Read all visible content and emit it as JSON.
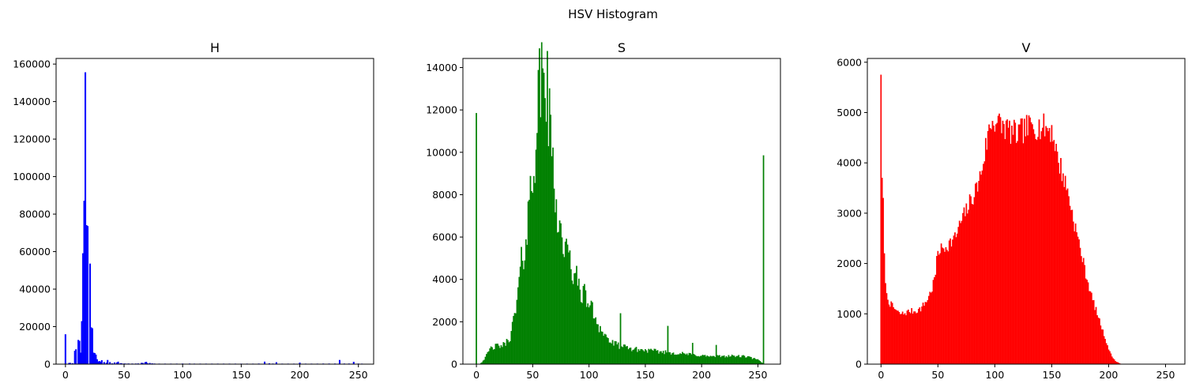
{
  "figure": {
    "suptitle": "HSV Histogram"
  },
  "chart_data": [
    {
      "type": "bar",
      "title": "H",
      "color": "#0000ff",
      "xlim": [
        -8,
        263
      ],
      "ylim": [
        0,
        163000
      ],
      "xticks": [
        0,
        50,
        100,
        150,
        200,
        250
      ],
      "yticks": [
        0,
        20000,
        40000,
        60000,
        80000,
        100000,
        120000,
        140000,
        160000
      ],
      "grid": false,
      "bins": [
        [
          0,
          15800
        ],
        [
          3,
          500
        ],
        [
          4,
          600
        ],
        [
          6,
          400
        ],
        [
          8,
          7000
        ],
        [
          9,
          7800
        ],
        [
          11,
          12800
        ],
        [
          12,
          12300
        ],
        [
          13,
          6000
        ],
        [
          14,
          22800
        ],
        [
          15,
          59000
        ],
        [
          16,
          87000
        ],
        [
          17,
          155500
        ],
        [
          18,
          74000
        ],
        [
          19,
          73500
        ],
        [
          21,
          53500
        ],
        [
          22,
          19500
        ],
        [
          23,
          19000
        ],
        [
          24,
          6000
        ],
        [
          25,
          5800
        ],
        [
          26,
          5000
        ],
        [
          27,
          2500
        ],
        [
          28,
          1300
        ],
        [
          29,
          1500
        ],
        [
          30,
          1200
        ],
        [
          31,
          2000
        ],
        [
          33,
          1000
        ],
        [
          35,
          700
        ],
        [
          36,
          2100
        ],
        [
          38,
          1000
        ],
        [
          40,
          300
        ],
        [
          42,
          800
        ],
        [
          44,
          800
        ],
        [
          45,
          1200
        ],
        [
          47,
          400
        ],
        [
          48,
          300
        ],
        [
          50,
          200
        ],
        [
          51,
          200
        ],
        [
          53,
          150
        ],
        [
          54,
          200
        ],
        [
          57,
          200
        ],
        [
          60,
          200
        ],
        [
          62,
          250
        ],
        [
          65,
          600
        ],
        [
          66,
          500
        ],
        [
          68,
          900
        ],
        [
          69,
          1100
        ],
        [
          70,
          400
        ],
        [
          72,
          500
        ],
        [
          74,
          300
        ],
        [
          76,
          200
        ],
        [
          80,
          150
        ],
        [
          85,
          150
        ],
        [
          90,
          150
        ],
        [
          95,
          150
        ],
        [
          100,
          200
        ],
        [
          106,
          200
        ],
        [
          110,
          150
        ],
        [
          115,
          150
        ],
        [
          120,
          150
        ],
        [
          125,
          150
        ],
        [
          130,
          150
        ],
        [
          135,
          150
        ],
        [
          140,
          150
        ],
        [
          145,
          150
        ],
        [
          150,
          150
        ],
        [
          155,
          150
        ],
        [
          160,
          150
        ],
        [
          165,
          200
        ],
        [
          170,
          1200
        ],
        [
          174,
          300
        ],
        [
          177,
          200
        ],
        [
          180,
          900
        ],
        [
          185,
          150
        ],
        [
          190,
          150
        ],
        [
          195,
          150
        ],
        [
          200,
          700
        ],
        [
          205,
          150
        ],
        [
          210,
          150
        ],
        [
          215,
          150
        ],
        [
          220,
          200
        ],
        [
          225,
          200
        ],
        [
          230,
          200
        ],
        [
          234,
          2100
        ],
        [
          238,
          200
        ],
        [
          242,
          200
        ],
        [
          246,
          1100
        ],
        [
          250,
          200
        ],
        [
          253,
          150
        ]
      ]
    },
    {
      "type": "bar",
      "title": "S",
      "color": "#008000",
      "xlim": [
        -12,
        270
      ],
      "ylim": [
        0,
        14430
      ],
      "xticks": [
        0,
        50,
        100,
        150,
        200,
        250
      ],
      "yticks": [
        0,
        2000,
        4000,
        6000,
        8000,
        10000,
        12000,
        14000
      ],
      "grid": false,
      "spikes": [
        [
          0,
          11850
        ],
        [
          128,
          2400
        ],
        [
          170,
          1800
        ],
        [
          192,
          1000
        ],
        [
          213,
          900
        ],
        [
          255,
          9850
        ]
      ],
      "peak": {
        "x": 60,
        "y": 13750
      }
    },
    {
      "type": "bar",
      "title": "V",
      "color": "#ff0000",
      "xlim": [
        -12,
        267
      ],
      "ylim": [
        0,
        6075
      ],
      "xticks": [
        0,
        50,
        100,
        150,
        200,
        250
      ],
      "yticks": [
        0,
        1000,
        2000,
        3000,
        4000,
        5000,
        6000
      ],
      "grid": false,
      "spikes": [
        [
          0,
          5750
        ],
        [
          1,
          3700
        ],
        [
          2,
          3300
        ],
        [
          3,
          2200
        ]
      ],
      "envelope": [
        [
          4,
          1700
        ],
        [
          5,
          1350
        ],
        [
          8,
          1200
        ],
        [
          12,
          1100
        ],
        [
          16,
          1000
        ],
        [
          20,
          1000
        ],
        [
          25,
          1050
        ],
        [
          30,
          1050
        ],
        [
          35,
          1100
        ],
        [
          40,
          1250
        ],
        [
          45,
          1500
        ],
        [
          48,
          1800
        ],
        [
          50,
          2250
        ],
        [
          55,
          2300
        ],
        [
          60,
          2400
        ],
        [
          65,
          2500
        ],
        [
          70,
          2800
        ],
        [
          75,
          3050
        ],
        [
          80,
          3300
        ],
        [
          85,
          3550
        ],
        [
          88,
          3800
        ],
        [
          92,
          4300
        ],
        [
          95,
          4650
        ],
        [
          97,
          4800
        ],
        [
          100,
          4850
        ],
        [
          105,
          4750
        ],
        [
          110,
          4700
        ],
        [
          115,
          4600
        ],
        [
          120,
          4550
        ],
        [
          125,
          4650
        ],
        [
          130,
          4700
        ],
        [
          135,
          4750
        ],
        [
          140,
          4700
        ],
        [
          145,
          4700
        ],
        [
          150,
          4650
        ],
        [
          153,
          4400
        ],
        [
          155,
          4100
        ],
        [
          158,
          3900
        ],
        [
          160,
          3750
        ],
        [
          165,
          3350
        ],
        [
          168,
          3000
        ],
        [
          170,
          2800
        ],
        [
          175,
          2300
        ],
        [
          178,
          2000
        ],
        [
          180,
          1800
        ],
        [
          185,
          1350
        ],
        [
          190,
          1000
        ],
        [
          195,
          650
        ],
        [
          200,
          300
        ],
        [
          203,
          150
        ],
        [
          206,
          60
        ],
        [
          210,
          10
        ],
        [
          212,
          0
        ]
      ]
    }
  ]
}
